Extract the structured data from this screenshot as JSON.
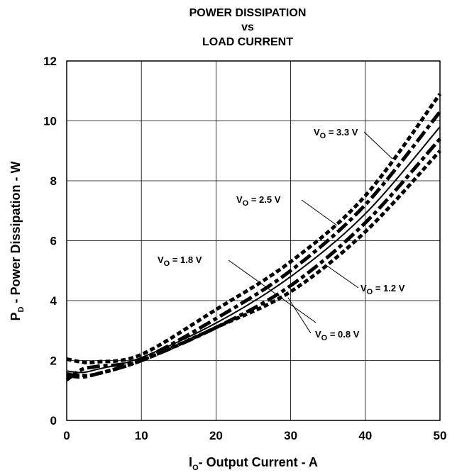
{
  "chart_data": {
    "type": "line",
    "title": [
      "POWER DISSIPATION",
      "vs",
      "LOAD CURRENT"
    ],
    "xlabel": {
      "main": "I",
      "sub": "O",
      "rest": "- Output Current - A"
    },
    "ylabel": {
      "main": "P",
      "sub": "D",
      "rest": " - Power Dissipation - W"
    },
    "xlim": [
      0,
      50
    ],
    "ylim": [
      0,
      12
    ],
    "xticks": [
      "0",
      "10",
      "20",
      "30",
      "40",
      "50"
    ],
    "yticks": [
      "0",
      "2",
      "4",
      "6",
      "8",
      "10",
      "12"
    ],
    "grid": true,
    "series": [
      {
        "name": "VO = 0.8 V",
        "dash": "dot",
        "x": [
          0,
          2,
          4,
          10,
          20,
          30,
          40,
          50
        ],
        "y": [
          1.55,
          1.5,
          1.55,
          2.0,
          3.1,
          4.3,
          6.3,
          9.0
        ]
      },
      {
        "name": "VO = 1.2 V",
        "dash": "dashdot",
        "x": [
          0,
          2,
          4,
          10,
          20,
          30,
          40,
          50
        ],
        "y": [
          1.5,
          1.45,
          1.55,
          2.0,
          3.1,
          4.5,
          6.6,
          9.4
        ]
      },
      {
        "name": "VO = 1.8 V",
        "dash": "solid",
        "x": [
          0,
          2,
          4,
          10,
          20,
          30,
          40,
          50
        ],
        "y": [
          1.65,
          1.6,
          1.7,
          2.1,
          3.25,
          4.8,
          6.9,
          9.8
        ]
      },
      {
        "name": "VO = 2.5 V",
        "dash": "dashdot",
        "x": [
          0,
          2,
          4,
          10,
          20,
          30,
          40,
          50
        ],
        "y": [
          1.35,
          1.7,
          1.8,
          2.05,
          3.4,
          5.0,
          7.2,
          10.3
        ]
      },
      {
        "name": "VO = 3.3 V",
        "dash": "dot",
        "x": [
          0,
          2,
          4,
          10,
          20,
          30,
          40,
          50
        ],
        "y": [
          2.05,
          1.95,
          1.95,
          2.2,
          3.7,
          5.3,
          7.5,
          10.9
        ]
      }
    ],
    "annotations": [
      {
        "main": "V",
        "sub": "O",
        "rest": " = 3.3 V",
        "series": 4
      },
      {
        "main": "V",
        "sub": "O",
        "rest": " = 2.5 V",
        "series": 3
      },
      {
        "main": "V",
        "sub": "O",
        "rest": " = 1.8 V",
        "series": 2
      },
      {
        "main": "V",
        "sub": "O",
        "rest": " = 1.2 V",
        "series": 1
      },
      {
        "main": "V",
        "sub": "O",
        "rest": " = 0.8 V",
        "series": 0
      }
    ]
  }
}
